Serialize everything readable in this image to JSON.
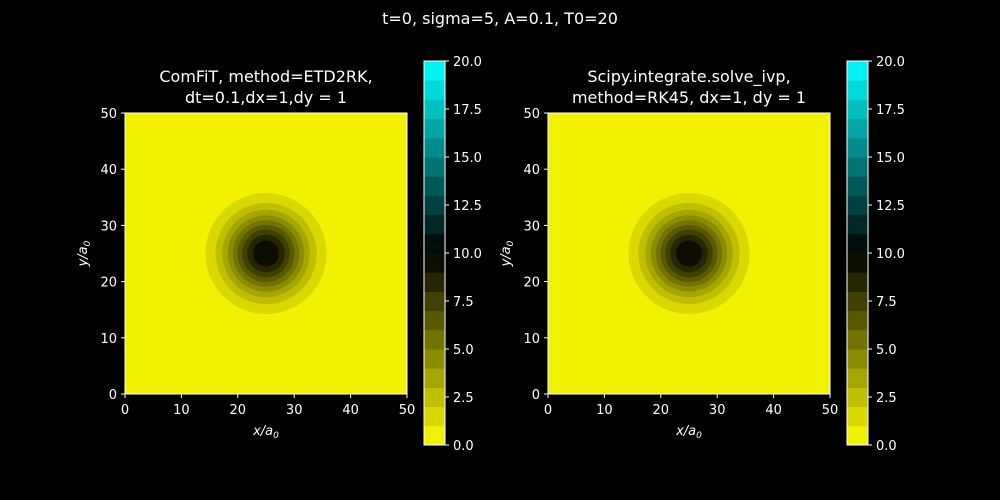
{
  "figure": {
    "suptitle": "t=0, sigma=5, A=0.1, T0=20",
    "background": "#000000",
    "foreground": "#ffffff"
  },
  "chart_data": [
    {
      "type": "heatmap",
      "title_lines": [
        "ComFiT, method=ETD2RK,",
        "dt=0.1,dx=1,dy = 1"
      ],
      "xlabel": {
        "main": "x/a",
        "sub": "0"
      },
      "ylabel": {
        "main": "y/a",
        "sub": "0"
      },
      "xlim": [
        0,
        50
      ],
      "ylim": [
        0,
        50
      ],
      "xticks": [
        "0",
        "10",
        "20",
        "30",
        "40",
        "50"
      ],
      "yticks": [
        "0",
        "10",
        "20",
        "30",
        "40",
        "50"
      ],
      "field": {
        "kind": "gaussian_temperature",
        "center": [
          25,
          25
        ],
        "sigma": 5,
        "peak_value": 10,
        "background_value": 0,
        "support_radius": 14.5,
        "levels": 20
      },
      "colorbar": {
        "range": [
          0,
          20
        ],
        "ticks": [
          "0.0",
          "2.5",
          "5.0",
          "7.5",
          "10.0",
          "12.5",
          "15.0",
          "17.5",
          "20.0"
        ],
        "colors": [
          "#ffff00",
          "#000000",
          "#00ffff"
        ]
      }
    },
    {
      "type": "heatmap",
      "title_lines": [
        "Scipy.integrate.solve_ivp,",
        "method=RK45, dx=1, dy = 1"
      ],
      "xlabel": {
        "main": "x/a",
        "sub": "0"
      },
      "ylabel": {
        "main": "y/a",
        "sub": "0"
      },
      "xlim": [
        0,
        50
      ],
      "ylim": [
        0,
        50
      ],
      "xticks": [
        "0",
        "10",
        "20",
        "30",
        "40",
        "50"
      ],
      "yticks": [
        "0",
        "10",
        "20",
        "30",
        "40",
        "50"
      ],
      "field": {
        "kind": "gaussian_temperature",
        "center": [
          25,
          25
        ],
        "sigma": 5,
        "peak_value": 10,
        "background_value": 0,
        "support_radius": 14.5,
        "levels": 20
      },
      "colorbar": {
        "range": [
          0,
          20
        ],
        "ticks": [
          "0.0",
          "2.5",
          "5.0",
          "7.5",
          "10.0",
          "12.5",
          "15.0",
          "17.5",
          "20.0"
        ],
        "colors": [
          "#ffff00",
          "#000000",
          "#00ffff"
        ]
      }
    }
  ]
}
